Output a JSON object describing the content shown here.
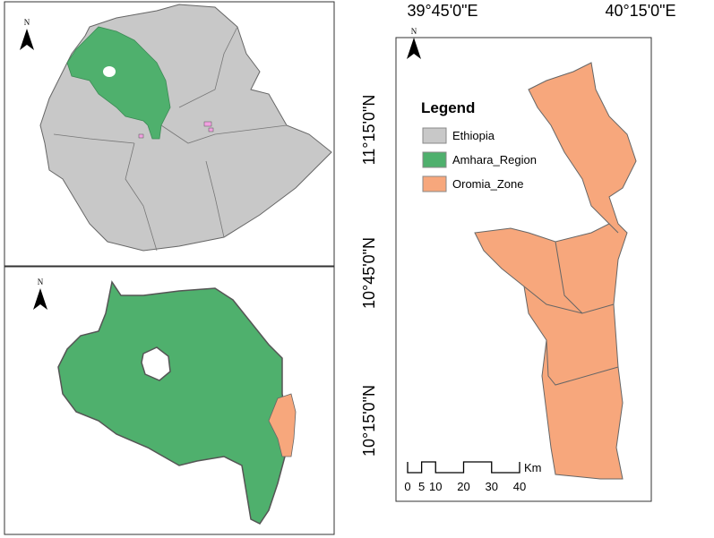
{
  "overview_map": {
    "north": "N"
  },
  "region_map": {
    "north": "N"
  },
  "study_map": {
    "north": "N"
  },
  "coordinates": {
    "longitude": [
      "39°45'0\"E",
      "40°15'0\"E"
    ],
    "latitude": [
      "11°15'0\"N",
      "10°45'0\"N",
      "10°15'0\"N"
    ]
  },
  "legend": {
    "title": "Legend",
    "items": [
      {
        "label": "Ethiopia",
        "color": "#c8c8c8"
      },
      {
        "label": "Amhara_Region",
        "color": "#4fb06d"
      },
      {
        "label": "Oromia_Zone",
        "color": "#f7a77c"
      }
    ]
  },
  "scale_bar": {
    "labels": [
      0,
      5,
      10,
      20,
      30,
      40
    ],
    "unit": "Km"
  }
}
